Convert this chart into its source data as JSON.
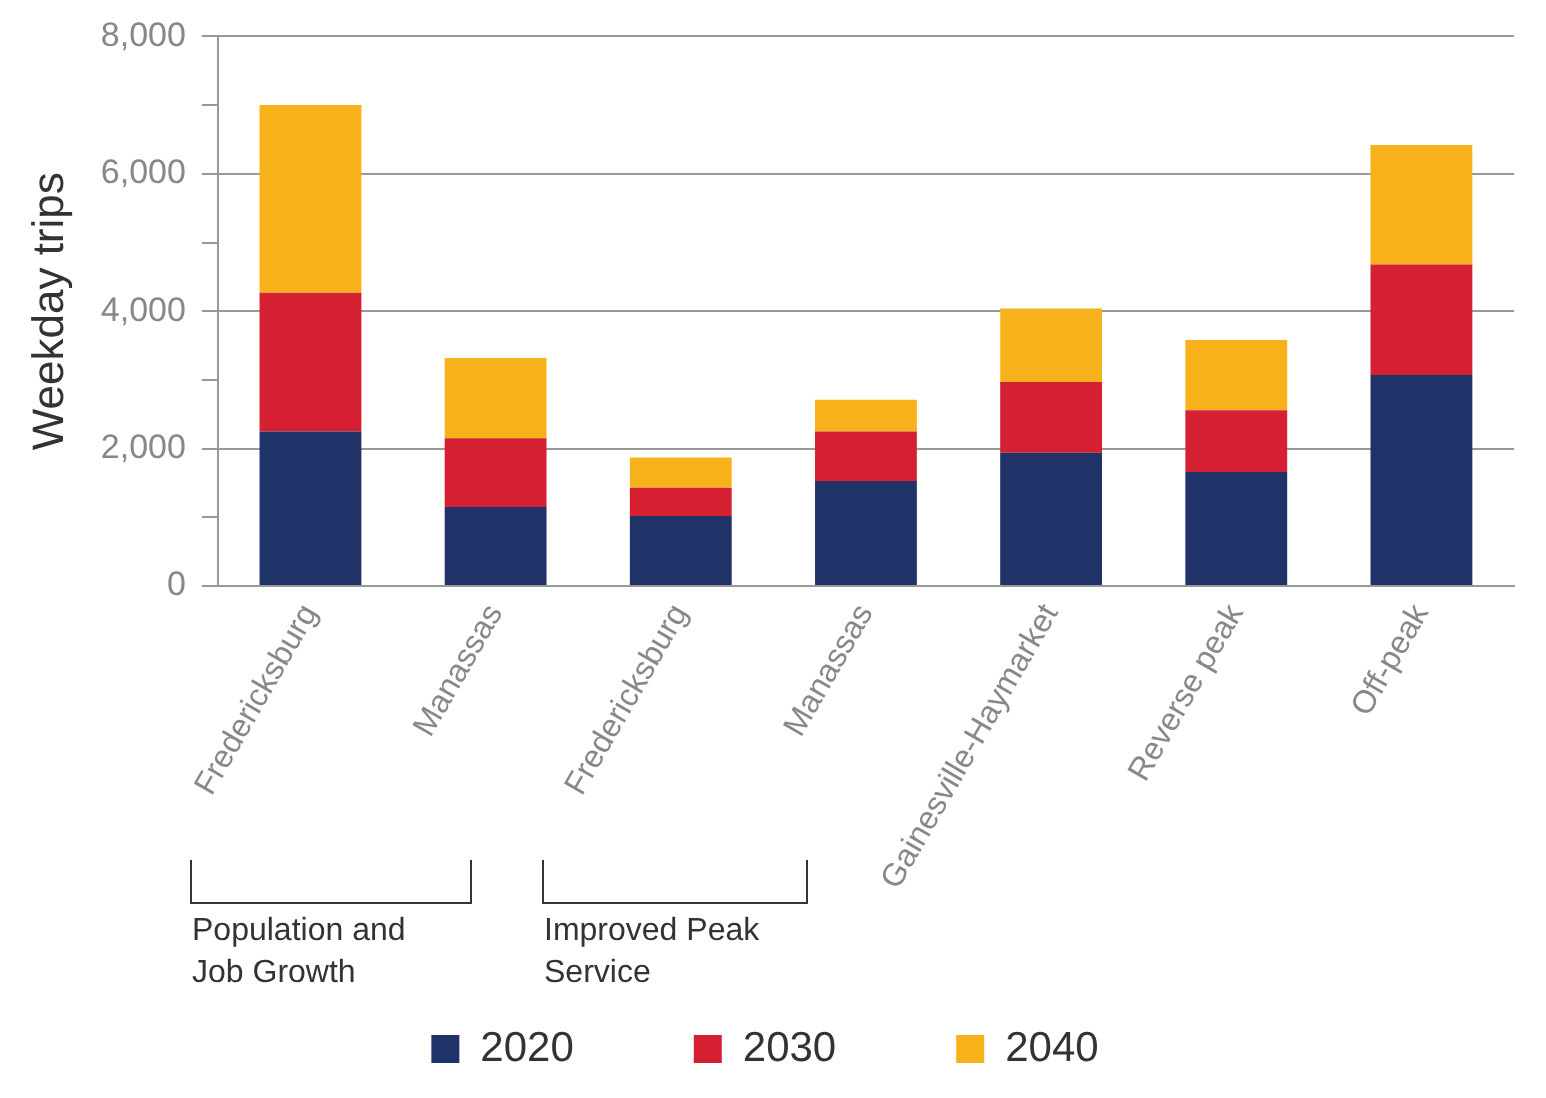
{
  "chart_data": {
    "type": "bar",
    "stacked": true,
    "ylabel": "Weekday trips",
    "categories": [
      "Fredericksburg",
      "Manassas",
      "Fredericksburg",
      "Manassas",
      "Gainesville-Haymarket",
      "Reverse peak",
      "Off-peak"
    ],
    "series": [
      {
        "name": "2020",
        "color": "#1f3369",
        "values": [
          2250,
          1150,
          1020,
          1530,
          1940,
          1660,
          3070
        ]
      },
      {
        "name": "2030",
        "color": "#d42030",
        "values": [
          2020,
          1000,
          410,
          720,
          1030,
          900,
          1610
        ]
      },
      {
        "name": "2040",
        "color": "#f7b21b",
        "values": [
          2730,
          1170,
          440,
          460,
          1070,
          1020,
          1740
        ]
      }
    ],
    "ylim": [
      0,
      8000
    ],
    "yticks": [
      {
        "value": 0,
        "label": "0"
      },
      {
        "value": 1000,
        "label": null
      },
      {
        "value": 2000,
        "label": "2,000"
      },
      {
        "value": 3000,
        "label": null
      },
      {
        "value": 4000,
        "label": "4,000"
      },
      {
        "value": 5000,
        "label": null
      },
      {
        "value": 6000,
        "label": "6,000"
      },
      {
        "value": 7000,
        "label": null
      },
      {
        "value": 8000,
        "label": "8,000"
      }
    ],
    "grid": "y",
    "legend": "bottom",
    "annotations": [
      "Population and Job Growth",
      "Improved Peak Service"
    ]
  }
}
